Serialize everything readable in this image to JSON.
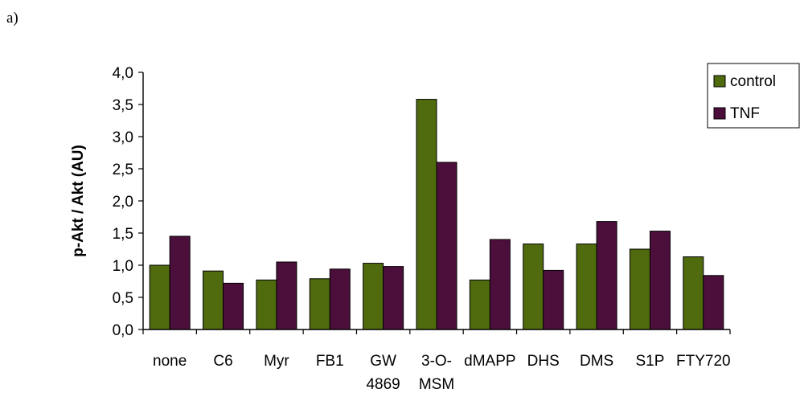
{
  "panel_label": "a)",
  "chart_data": {
    "type": "bar",
    "title": "",
    "xlabel": "",
    "ylabel": "p-Akt / Akt (AU)",
    "ylim": [
      0,
      4
    ],
    "yticks": [
      "0,0",
      "0,5",
      "1,0",
      "1,5",
      "2,0",
      "2,5",
      "3,0",
      "3,5",
      "4,0"
    ],
    "grid": false,
    "legend_position": "top-right",
    "categories": [
      [
        "none"
      ],
      [
        "C6"
      ],
      [
        "Myr"
      ],
      [
        "FB1"
      ],
      [
        "GW",
        "4869"
      ],
      [
        "3-O-",
        "MSM"
      ],
      [
        "dMAPP"
      ],
      [
        "DHS"
      ],
      [
        "DMS"
      ],
      [
        "S1P"
      ],
      [
        "FTY720"
      ]
    ],
    "series": [
      {
        "name": "control",
        "color": "#4f6b0e",
        "values": [
          1.0,
          0.91,
          0.77,
          0.79,
          1.03,
          3.58,
          0.77,
          1.33,
          1.33,
          1.25,
          1.13
        ]
      },
      {
        "name": "TNF",
        "color": "#4c0f3c",
        "values": [
          1.45,
          0.72,
          1.05,
          0.94,
          0.98,
          2.6,
          1.4,
          0.92,
          1.68,
          1.53,
          0.84
        ]
      }
    ]
  }
}
